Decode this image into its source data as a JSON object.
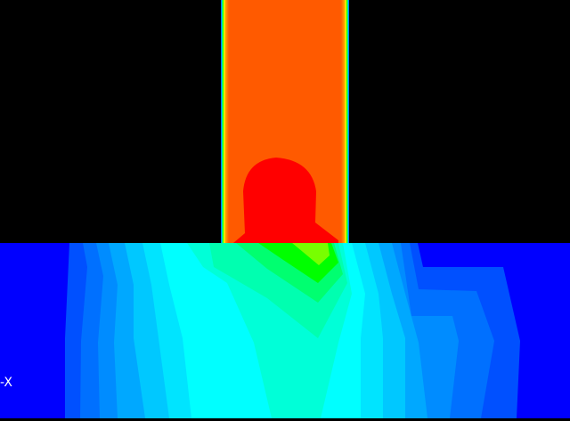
{
  "view": {
    "axis_label": "-X",
    "colors": {
      "background": "#000000",
      "min": "#0000ff",
      "column": "#ff5a00",
      "max": "#ff0000"
    },
    "contour_bands": [
      "#0050ff",
      "#0070ff",
      "#008cff",
      "#00a8ff",
      "#00c8ff",
      "#00e4ff",
      "#00ffff",
      "#00ffd8",
      "#00ffb0",
      "#00ff70",
      "#00ff00",
      "#78ff00"
    ]
  }
}
